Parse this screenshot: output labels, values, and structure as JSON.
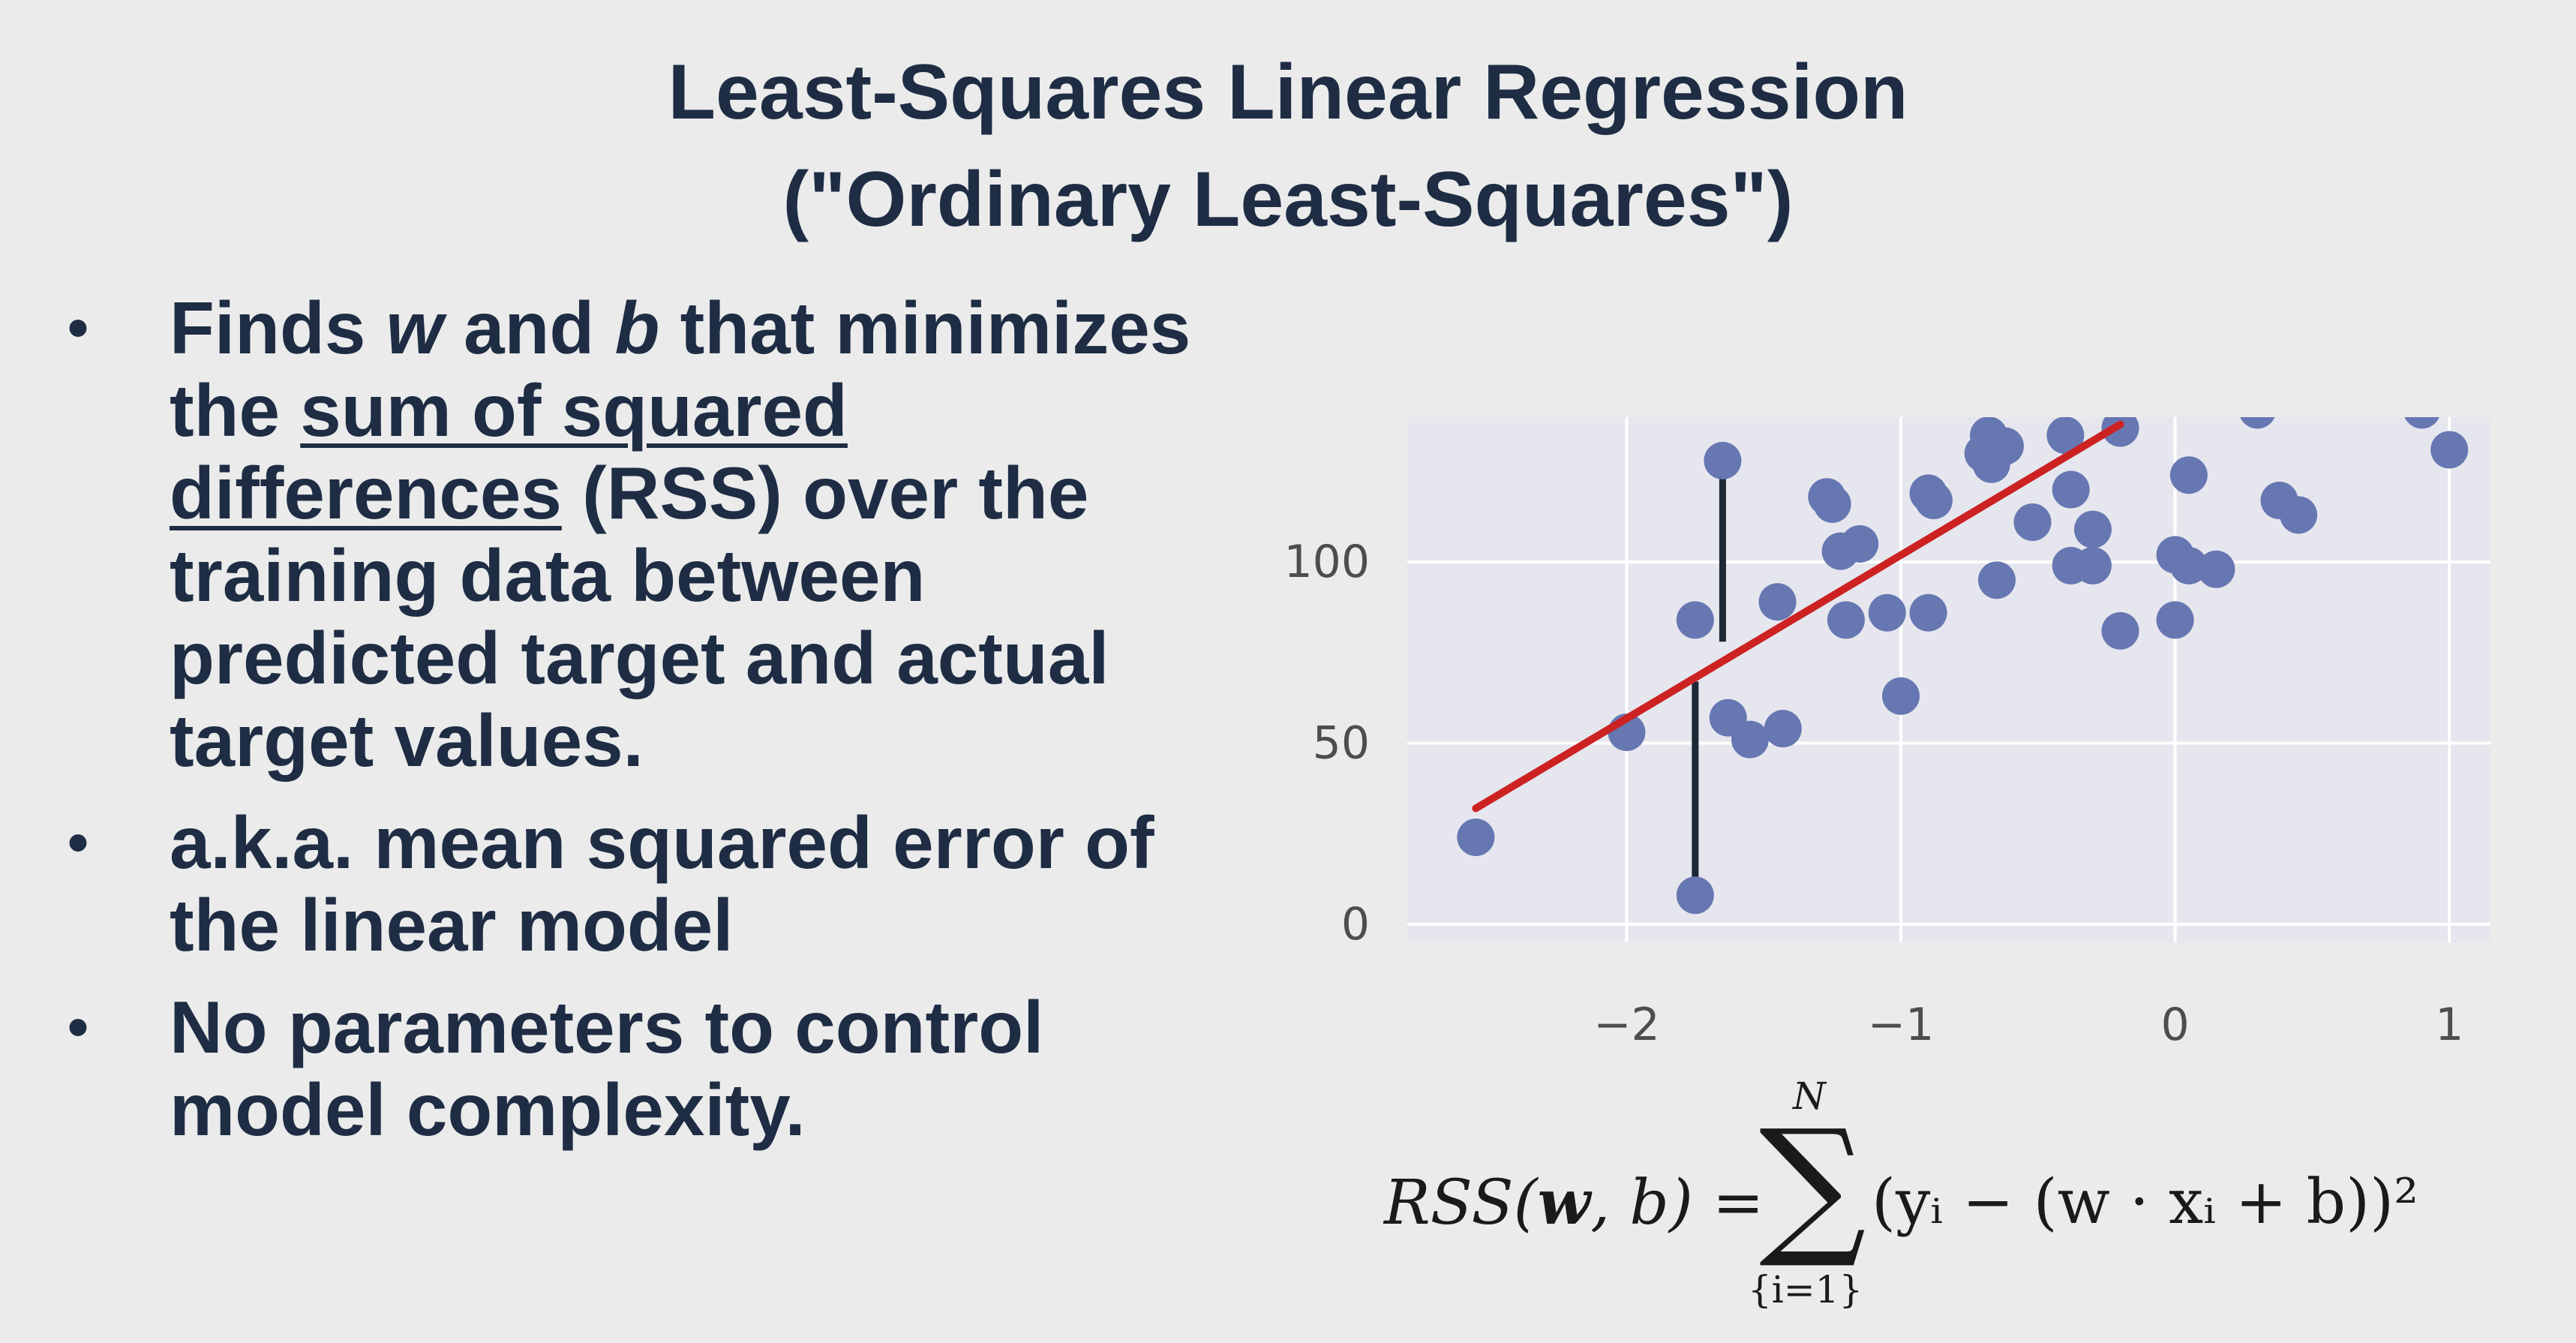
{
  "title": {
    "line1": "Least-Squares Linear Regression",
    "line2": "(\"Ordinary Least-Squares\")"
  },
  "bullets": {
    "b1": {
      "t1": "Finds ",
      "w": "w",
      "t2": " and ",
      "b": "b",
      "t3": " that minimizes the ",
      "u": "sum of squared differences",
      "t4": " (RSS) over the training data between predicted target and actual target values."
    },
    "b2": {
      "text": "a.k.a. mean squared error of the linear model"
    },
    "b3": {
      "text": "No parameters to control model complexity."
    }
  },
  "formula": {
    "lhs_name": "RSS",
    "lhs_open": "(",
    "lhs_w": "w",
    "lhs_comma": ", b) = ",
    "sigma": "∑",
    "upper": "N",
    "lower": "{i=1}",
    "rhs": "(yᵢ − (w · xᵢ + b))²"
  },
  "chart_data": {
    "type": "scatter",
    "xlim": [
      -2.8,
      1.15
    ],
    "ylim": [
      -5,
      140
    ],
    "xticks": [
      -2,
      -1,
      0,
      1
    ],
    "xtick_labels": [
      "−2",
      "−1",
      "0",
      "1"
    ],
    "yticks": [
      0,
      50,
      100
    ],
    "ytick_labels": [
      "0",
      "50",
      "100"
    ],
    "grid": true,
    "colors": {
      "background": "#e6e6ee",
      "grid": "#ffffff",
      "points": "#6677b2",
      "fit_line": "#cc2222",
      "residual": "#1c2836"
    },
    "points": [
      [
        -2.55,
        24
      ],
      [
        -2.0,
        53
      ],
      [
        -1.75,
        84
      ],
      [
        -1.75,
        8
      ],
      [
        -1.65,
        128
      ],
      [
        -1.63,
        57
      ],
      [
        -1.55,
        51
      ],
      [
        -1.45,
        89
      ],
      [
        -1.43,
        54
      ],
      [
        -1.27,
        118
      ],
      [
        -1.25,
        116
      ],
      [
        -1.22,
        103
      ],
      [
        -1.15,
        105
      ],
      [
        -1.2,
        84
      ],
      [
        -1.05,
        86
      ],
      [
        -1.0,
        63
      ],
      [
        -0.9,
        86
      ],
      [
        -0.9,
        119
      ],
      [
        -0.88,
        117
      ],
      [
        -0.7,
        130
      ],
      [
        -0.68,
        135
      ],
      [
        -0.62,
        132
      ],
      [
        -0.67,
        127
      ],
      [
        -0.65,
        95
      ],
      [
        -0.52,
        111
      ],
      [
        -0.4,
        135
      ],
      [
        -0.38,
        120
      ],
      [
        -0.38,
        99
      ],
      [
        -0.3,
        109
      ],
      [
        -0.3,
        99
      ],
      [
        -0.2,
        81
      ],
      [
        -0.2,
        137
      ],
      [
        0.0,
        84
      ],
      [
        0.0,
        102
      ],
      [
        0.05,
        99
      ],
      [
        0.05,
        124
      ],
      [
        0.15,
        98
      ],
      [
        0.3,
        142
      ],
      [
        0.38,
        117
      ],
      [
        0.45,
        113
      ],
      [
        0.9,
        142
      ],
      [
        1.0,
        131
      ]
    ],
    "fit_line": {
      "x": [
        -2.55,
        -0.2
      ],
      "y": [
        32,
        138
      ]
    },
    "residuals": [
      {
        "x": -1.65,
        "y1": 128,
        "y2": 78
      },
      {
        "x": -1.75,
        "y1": 8,
        "y2": 67
      }
    ]
  }
}
